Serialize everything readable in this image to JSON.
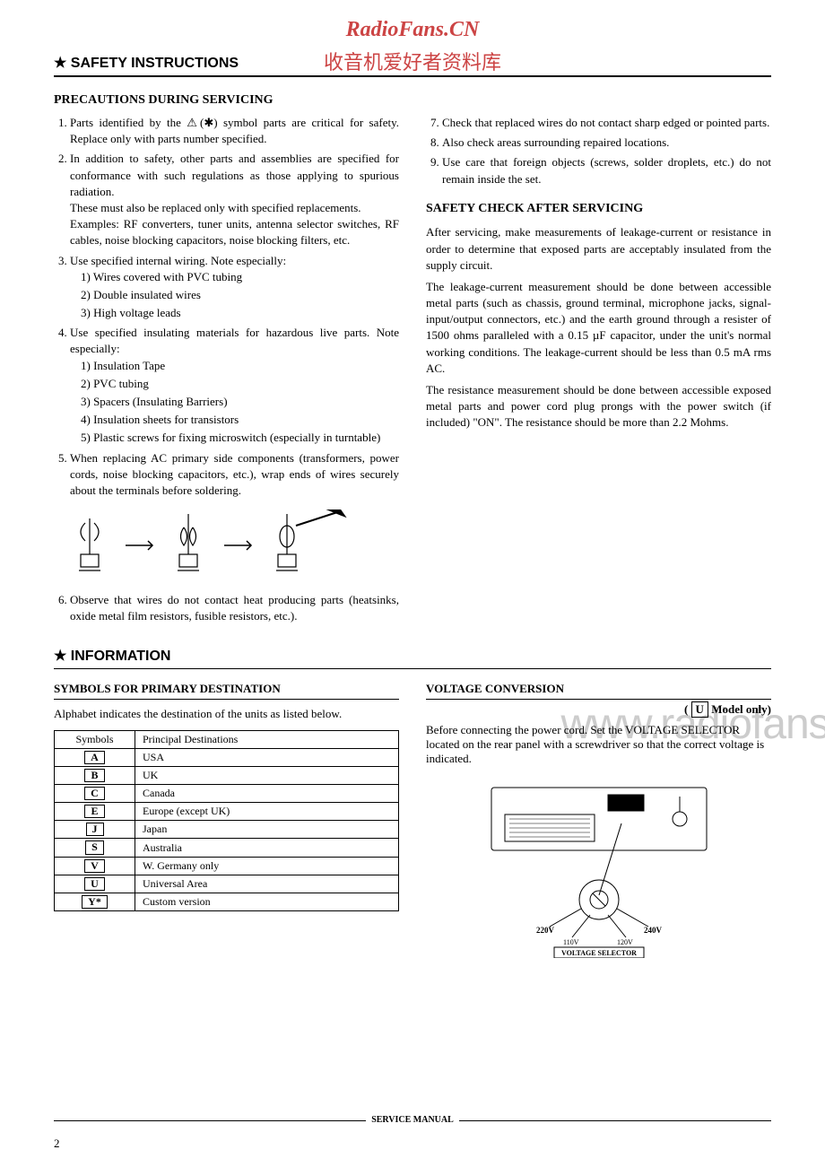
{
  "watermarks": {
    "top": "RadioFans.CN",
    "cn": "收音机爱好者资料库",
    "side": "www.radiofans.c"
  },
  "safety": {
    "header": "★ SAFETY INSTRUCTIONS",
    "precautions_title": "PRECAUTIONS DURING SERVICING",
    "left": {
      "item1": "Parts identified by the ⚠(✱) symbol parts are critical for safety. Replace only with parts number specified.",
      "item2a": "In addition to safety, other parts and assemblies are specified for conformance with such regulations as those applying to spurious radiation.",
      "item2b": "These must also be replaced only with specified replacements.",
      "item2c": "Examples: RF converters, tuner units, antenna selector switches, RF cables, noise blocking capacitors, noise blocking filters, etc.",
      "item3": "Use specified internal wiring. Note especially:",
      "item3_1": "1) Wires covered with PVC tubing",
      "item3_2": "2) Double insulated wires",
      "item3_3": "3) High voltage leads",
      "item4": "Use specified insulating materials for hazardous live parts. Note especially:",
      "item4_1": "1) Insulation Tape",
      "item4_2": "2) PVC tubing",
      "item4_3": "3) Spacers (Insulating Barriers)",
      "item4_4": "4) Insulation sheets for transistors",
      "item4_5": "5) Plastic screws for fixing microswitch (especially in turntable)",
      "item5": "When replacing AC primary side components (transformers, power cords, noise blocking capacitors, etc.), wrap ends of wires securely about the terminals before soldering.",
      "item6": "Observe that wires do not contact heat producing parts (heatsinks, oxide metal film resistors, fusible resistors, etc.)."
    },
    "right": {
      "item7": "Check that replaced wires do not contact sharp edged or pointed parts.",
      "item8": "Also check areas surrounding repaired locations.",
      "item9": "Use care that foreign objects (screws, solder droplets, etc.) do not remain inside the set.",
      "check_title": "SAFETY CHECK AFTER SERVICING",
      "p1": "After servicing, make measurements of leakage-current or resistance in order to determine that exposed parts are acceptably insulated from the supply circuit.",
      "p2": "The leakage-current measurement should be done between accessible metal parts (such as chassis, ground terminal, microphone jacks, signal-input/output connectors, etc.) and the earth ground through a resister of 1500 ohms paralleled with a 0.15 µF capacitor, under the unit's normal working conditions. The leakage-current should be less than 0.5 mA rms AC.",
      "p3": "The resistance measurement should be done between accessible exposed metal parts and power cord plug prongs with the power switch (if included) \"ON\". The resistance should be more than 2.2 Mohms."
    }
  },
  "info": {
    "header": "★ INFORMATION",
    "symbols": {
      "title": "SYMBOLS FOR PRIMARY DESTINATION",
      "intro": "Alphabet indicates the destination of the units as listed below.",
      "col1": "Symbols",
      "col2": "Principal Destinations",
      "rows": [
        {
          "sym": "A",
          "dest": "USA"
        },
        {
          "sym": "B",
          "dest": "UK"
        },
        {
          "sym": "C",
          "dest": "Canada"
        },
        {
          "sym": "E",
          "dest": "Europe (except UK)"
        },
        {
          "sym": "J",
          "dest": "Japan"
        },
        {
          "sym": "S",
          "dest": "Australia"
        },
        {
          "sym": "V",
          "dest": "W. Germany only"
        },
        {
          "sym": "U",
          "dest": "Universal Area"
        },
        {
          "sym": "Y*",
          "dest": "Custom version"
        }
      ]
    },
    "voltage": {
      "title": "VOLTAGE CONVERSION",
      "model": "Model only)",
      "p1": "Before connecting the power cord. Set the VOLTAGE SELECTOR located on the rear panel with a screwdriver so that the correct voltage is indicated.",
      "v220": "220V",
      "v110": "110V",
      "v120": "120V",
      "v240": "240V",
      "selector_label": "VOLTAGE SELECTOR"
    }
  },
  "footer": {
    "label": "SERVICE MANUAL",
    "page": "2"
  }
}
